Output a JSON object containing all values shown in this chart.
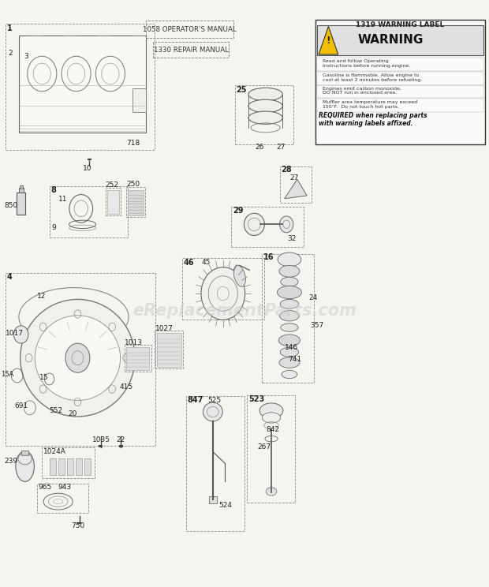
{
  "bg_color": "#f5f5f0",
  "watermark": "eReplacementParts.com",
  "warning_label_title": "1319 WARNING LABEL",
  "warning_title": "WARNING",
  "manual_box1": "1058 OPERATOR'S MANUAL",
  "manual_box2": "1330 REPAIR MANUAL",
  "warning_rows": [
    "Read and follow Operating\nInstructions before running engine.",
    "Gasoline is flammable. Allow engine to\ncool at least 2 minutes before refueling.",
    "Engines emit carbon monoxide,\nDO NOT run in enclosed area.",
    "Muffler area temperature may exceed\n150°F.  Do not touch hot parts."
  ],
  "warning_required": "REQUIRED when replacing parts\nwith warning labels affixed."
}
